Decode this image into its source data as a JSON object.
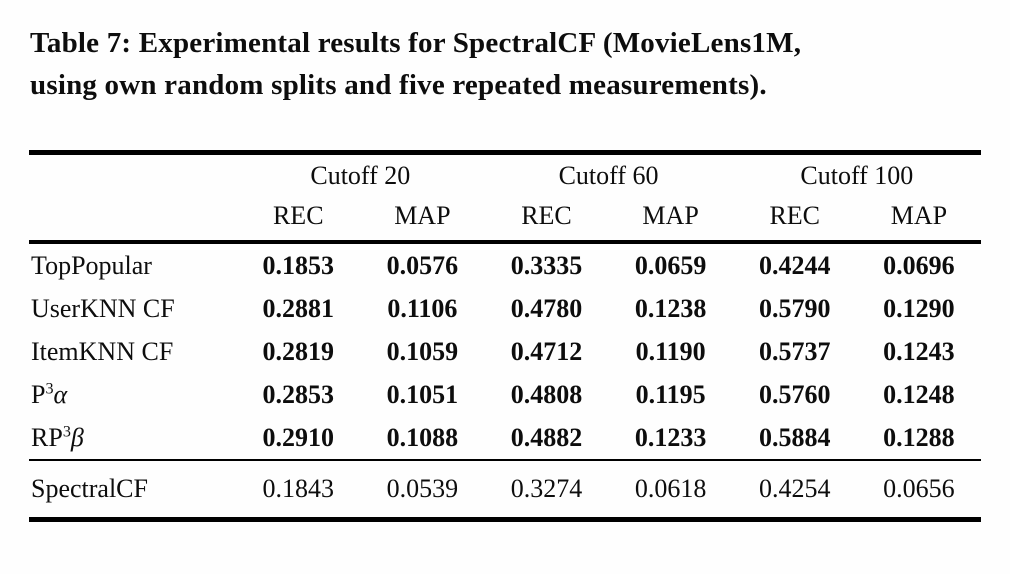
{
  "page": {
    "caption_line1": "Table 7: Experimental results for SpectralCF (MovieLens1M,",
    "caption_line2": "using own random splits and five repeated measurements)."
  },
  "table": {
    "col_groups": [
      {
        "label": "Cutoff 20"
      },
      {
        "label": "Cutoff 60"
      },
      {
        "label": "Cutoff 100"
      }
    ],
    "subheaders": [
      "REC",
      "MAP",
      "REC",
      "MAP",
      "REC",
      "MAP"
    ],
    "rows": [
      {
        "label": "TopPopular",
        "sup": "",
        "greek": "",
        "values": [
          "0.1853",
          "0.0576",
          "0.3335",
          "0.0659",
          "0.4244",
          "0.0696"
        ]
      },
      {
        "label": "UserKNN CF",
        "sup": "",
        "greek": "",
        "values": [
          "0.2881",
          "0.1106",
          "0.4780",
          "0.1238",
          "0.5790",
          "0.1290"
        ]
      },
      {
        "label": "ItemKNN CF",
        "sup": "",
        "greek": "",
        "values": [
          "0.2819",
          "0.1059",
          "0.4712",
          "0.1190",
          "0.5737",
          "0.1243"
        ]
      },
      {
        "label": "P",
        "sup": "3",
        "greek": "α",
        "values": [
          "0.2853",
          "0.1051",
          "0.4808",
          "0.1195",
          "0.5760",
          "0.1248"
        ]
      },
      {
        "label": "RP",
        "sup": "3",
        "greek": "β",
        "values": [
          "0.2910",
          "0.1088",
          "0.4882",
          "0.1233",
          "0.5884",
          "0.1288"
        ]
      }
    ],
    "footer_row": {
      "label": "SpectralCF",
      "values": [
        "0.1843",
        "0.0539",
        "0.3274",
        "0.0618",
        "0.4254",
        "0.0656"
      ]
    },
    "colors": {
      "text": "#0d0d0d",
      "rule": "#000000",
      "background": "#fefefe"
    }
  }
}
